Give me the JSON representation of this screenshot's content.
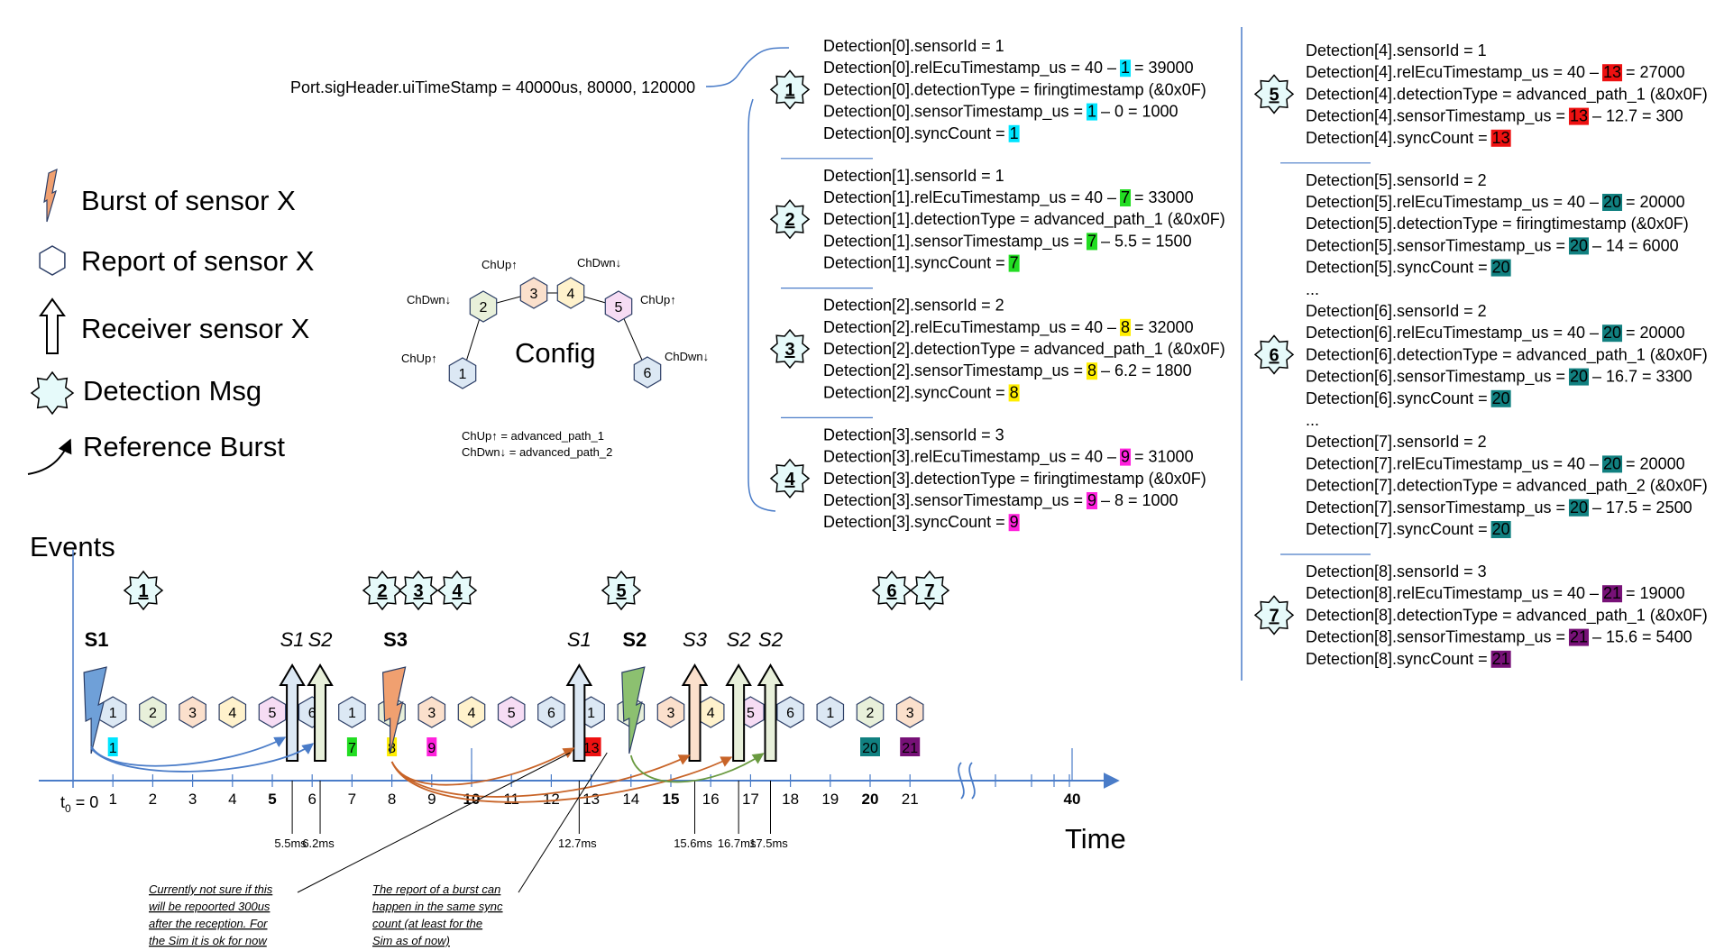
{
  "header": {
    "port_text": "Port.sigHeader.uiTimeStamp = 40000us, 80000, 120000"
  },
  "legend": {
    "items": [
      {
        "icon": "lightning-icon",
        "label": "Burst of sensor X"
      },
      {
        "icon": "hexagon-icon",
        "label": "Report of sensor X"
      },
      {
        "icon": "up-arrow-icon",
        "label": "Receiver sensor X"
      },
      {
        "icon": "starburst-icon",
        "label": "Detection Msg"
      },
      {
        "icon": "curved-arrow-icon",
        "label": "Reference Burst"
      }
    ]
  },
  "config": {
    "title": "Config",
    "nodes": [
      "1",
      "2",
      "3",
      "4",
      "5",
      "6"
    ],
    "labels": [
      "ChUp↑",
      "ChDwn↓",
      "ChUp↑",
      "ChDwn↓",
      "ChUp↑",
      "ChDwn↓"
    ],
    "legend_up": "ChUp↑ = advanced_path_1",
    "legend_down": "ChDwn↓ = advanced_path_2"
  },
  "colors": {
    "cyan": "#00e5ff",
    "green": "#22dd22",
    "yellow": "#ffee00",
    "magenta": "#ff22dd",
    "red": "#ee1111",
    "teal": "#118080",
    "purple": "#771177"
  },
  "detection_groups": [
    {
      "badge": "1",
      "lines": [
        {
          "pre": "Detection[0].sensorId = 1",
          "hl": "",
          "post": "",
          "hl2": "",
          "post2": ""
        },
        {
          "pre": "Detection[0].relEcuTimestamp_us = 40 – ",
          "hl": "1",
          "post": " = 39000",
          "color": "cyan"
        },
        {
          "pre": "Detection[0].detectionType = firingtimestamp (&0x0F)",
          "hl": "",
          "post": ""
        },
        {
          "pre": "Detection[0].sensorTimestamp_us = ",
          "hl": "1",
          "post": " – 0 = 1000",
          "color": "cyan"
        },
        {
          "pre": "Detection[0].syncCount = ",
          "hl": "1",
          "post": "",
          "color": "cyan"
        }
      ]
    },
    {
      "badge": "2",
      "lines": [
        {
          "pre": "Detection[1].sensorId = 1",
          "hl": "",
          "post": ""
        },
        {
          "pre": "Detection[1].relEcuTimestamp_us = 40 – ",
          "hl": "7",
          "post": " = 33000",
          "color": "green"
        },
        {
          "pre": "Detection[1].detectionType = advanced_path_1 (&0x0F)",
          "hl": "",
          "post": ""
        },
        {
          "pre": "Detection[1].sensorTimestamp_us = ",
          "hl": "7",
          "post": " – 5.5 = 1500",
          "color": "green"
        },
        {
          "pre": "Detection[1].syncCount = ",
          "hl": "7",
          "post": "",
          "color": "green"
        }
      ]
    },
    {
      "badge": "3",
      "lines": [
        {
          "pre": "Detection[2].sensorId = 2",
          "hl": "",
          "post": ""
        },
        {
          "pre": "Detection[2].relEcuTimestamp_us = 40 – ",
          "hl": "8",
          "post": " = 32000",
          "color": "yellow"
        },
        {
          "pre": "Detection[2].detectionType = advanced_path_1 (&0x0F)",
          "hl": "",
          "post": ""
        },
        {
          "pre": "Detection[2].sensorTimestamp_us = ",
          "hl": "8",
          "post": " – 6.2 = 1800",
          "color": "yellow"
        },
        {
          "pre": "Detection[2].syncCount = ",
          "hl": "8",
          "post": "",
          "color": "yellow"
        }
      ]
    },
    {
      "badge": "4",
      "lines": [
        {
          "pre": "Detection[3].sensorId = 3",
          "hl": "",
          "post": ""
        },
        {
          "pre": "Detection[3].relEcuTimestamp_us = 40 – ",
          "hl": "9",
          "post": " = 31000",
          "color": "magenta"
        },
        {
          "pre": "Detection[3].detectionType = firingtimestamp (&0x0F)",
          "hl": "",
          "post": ""
        },
        {
          "pre": "Detection[3].sensorTimestamp_us = ",
          "hl": "9",
          "post": " – 8 = 1000",
          "color": "magenta"
        },
        {
          "pre": "Detection[3].syncCount = ",
          "hl": "9",
          "post": "",
          "color": "magenta"
        }
      ]
    },
    {
      "badge": "5",
      "lines": [
        {
          "pre": "Detection[4].sensorId = 1",
          "hl": "",
          "post": ""
        },
        {
          "pre": "Detection[4].relEcuTimestamp_us = 40 – ",
          "hl": "13",
          "post": " = 27000",
          "color": "red"
        },
        {
          "pre": "Detection[4].detectionType = advanced_path_1 (&0x0F)",
          "hl": "",
          "post": ""
        },
        {
          "pre": "Detection[4].sensorTimestamp_us = ",
          "hl": "13",
          "post": " – 12.7 = 300",
          "color": "red"
        },
        {
          "pre": "Detection[4].syncCount = ",
          "hl": "13",
          "post": "",
          "color": "red"
        }
      ]
    },
    {
      "badge": "6",
      "lines": [
        {
          "pre": "Detection[5].sensorId = 2",
          "hl": "",
          "post": ""
        },
        {
          "pre": "Detection[5].relEcuTimestamp_us = 40 – ",
          "hl": "20",
          "post": " = 20000",
          "color": "teal"
        },
        {
          "pre": "Detection[5].detectionType = firingtimestamp (&0x0F)",
          "hl": "",
          "post": ""
        },
        {
          "pre": "Detection[5].sensorTimestamp_us = ",
          "hl": "20",
          "post": " – 14 = 6000",
          "color": "teal"
        },
        {
          "pre": "Detection[5].syncCount = ",
          "hl": "20",
          "post": "",
          "color": "teal"
        },
        {
          "pre": "...",
          "hl": "",
          "post": ""
        },
        {
          "pre": "Detection[6].sensorId = 2",
          "hl": "",
          "post": ""
        },
        {
          "pre": "Detection[6].relEcuTimestamp_us = 40 – ",
          "hl": "20",
          "post": " = 20000",
          "color": "teal"
        },
        {
          "pre": "Detection[6].detectionType = advanced_path_1 (&0x0F)",
          "hl": "",
          "post": ""
        },
        {
          "pre": "Detection[6].sensorTimestamp_us = ",
          "hl": "20",
          "post": " – 16.7 = 3300",
          "color": "teal"
        },
        {
          "pre": "Detection[6].syncCount = ",
          "hl": "20",
          "post": "",
          "color": "teal"
        },
        {
          "pre": "...",
          "hl": "",
          "post": ""
        },
        {
          "pre": "Detection[7].sensorId = 2",
          "hl": "",
          "post": ""
        },
        {
          "pre": "Detection[7].relEcuTimestamp_us = 40 – ",
          "hl": "20",
          "post": " = 20000",
          "color": "teal"
        },
        {
          "pre": "Detection[7].detectionType = advanced_path_2 (&0x0F)",
          "hl": "",
          "post": ""
        },
        {
          "pre": "Detection[7].sensorTimestamp_us = ",
          "hl": "20",
          "post": " – 17.5 = 2500",
          "color": "teal"
        },
        {
          "pre": "Detection[7].syncCount = ",
          "hl": "20",
          "post": "",
          "color": "teal"
        }
      ]
    },
    {
      "badge": "7",
      "lines": [
        {
          "pre": "Detection[8].sensorId = 3",
          "hl": "",
          "post": ""
        },
        {
          "pre": "Detection[8].relEcuTimestamp_us = 40 – ",
          "hl": "21",
          "post": " = 19000",
          "color": "purple"
        },
        {
          "pre": "Detection[8].detectionType = advanced_path_1 (&0x0F)",
          "hl": "",
          "post": ""
        },
        {
          "pre": "Detection[8].sensorTimestamp_us = ",
          "hl": "21",
          "post": " – 15.6 = 5400",
          "color": "purple"
        },
        {
          "pre": "Detection[8].syncCount = ",
          "hl": "21",
          "post": "",
          "color": "purple"
        }
      ]
    }
  ],
  "timeline": {
    "title": "Events",
    "axis_label": "Time",
    "t0_label": "t",
    "t0_sub": "0",
    "t0_rest": " = 0",
    "ticks": [
      "1",
      "2",
      "3",
      "4",
      "5",
      "6",
      "7",
      "8",
      "9",
      "10",
      "11",
      "12",
      "13",
      "14",
      "15",
      "16",
      "17",
      "18",
      "19",
      "20",
      "21"
    ],
    "bold_ticks": [
      "5",
      "10",
      "15",
      "20"
    ],
    "end_tick": "40",
    "badges": [
      {
        "label": "1",
        "t": 1.0
      },
      {
        "label": "2",
        "t": 8.0
      },
      {
        "label": "3",
        "t": 9.0
      },
      {
        "label": "4",
        "t": 10.0
      },
      {
        "label": "5",
        "t": 15.0
      },
      {
        "label": "6",
        "t": 22.0
      },
      {
        "label": "7",
        "t": 23.0
      }
    ],
    "bursts": [
      {
        "label": "S1",
        "t": 0.5,
        "color": "#6fa0d8"
      },
      {
        "label": "S3",
        "t": 8.0,
        "color": "#f0a070"
      },
      {
        "label": "S2",
        "t": 14.0,
        "color": "#8cc070"
      }
    ],
    "receivers": [
      {
        "label": "S1",
        "t": 5.5,
        "fill": "#dce8f4",
        "ms": "5.5ms"
      },
      {
        "label": "S2",
        "t": 6.2,
        "fill": "#e8f0da",
        "ms": "6.2ms"
      },
      {
        "label": "S1",
        "t": 12.7,
        "fill": "#dce8f4",
        "ms": "12.7ms"
      },
      {
        "label": "S3",
        "t": 15.6,
        "fill": "#fbe0cc",
        "ms": "15.6ms"
      },
      {
        "label": "S2",
        "t": 16.7,
        "fill": "#e8f0da",
        "ms": "16.7ms"
      },
      {
        "label": "S2",
        "t": 17.5,
        "fill": "#e8f0da",
        "ms": "17.5ms"
      }
    ],
    "reports": [
      {
        "n": "1",
        "t": 1
      },
      {
        "n": "2",
        "t": 2
      },
      {
        "n": "3",
        "t": 3
      },
      {
        "n": "4",
        "t": 4
      },
      {
        "n": "5",
        "t": 5
      },
      {
        "n": "6",
        "t": 6
      },
      {
        "n": "1",
        "t": 7
      },
      {
        "n": "2",
        "t": 8
      },
      {
        "n": "3",
        "t": 9
      },
      {
        "n": "4",
        "t": 10
      },
      {
        "n": "5",
        "t": 11
      },
      {
        "n": "6",
        "t": 12
      },
      {
        "n": "1",
        "t": 13
      },
      {
        "n": "2",
        "t": 14
      },
      {
        "n": "3",
        "t": 15
      },
      {
        "n": "4",
        "t": 16
      },
      {
        "n": "5",
        "t": 17
      },
      {
        "n": "6",
        "t": 18
      },
      {
        "n": "1",
        "t": 19
      },
      {
        "n": "2",
        "t": 20
      },
      {
        "n": "3",
        "t": 21
      }
    ],
    "sync_markers": [
      {
        "label": "1",
        "t": 1,
        "color": "cyan"
      },
      {
        "label": "7",
        "t": 7,
        "color": "green"
      },
      {
        "label": "8",
        "t": 8,
        "color": "yellow"
      },
      {
        "label": "9",
        "t": 9,
        "color": "magenta"
      },
      {
        "label": "13",
        "t": 13,
        "color": "red"
      },
      {
        "label": "20",
        "t": 20,
        "color": "teal"
      },
      {
        "label": "21",
        "t": 21,
        "color": "purple"
      }
    ],
    "note1": [
      "Currently not sure if this",
      "will be repoorted 300us",
      "after the reception. For",
      "the Sim it is ok for now"
    ],
    "note2": [
      "The report of a burst can",
      "happen in the same sync",
      "count (at least for the",
      "Sim as of now)"
    ]
  }
}
